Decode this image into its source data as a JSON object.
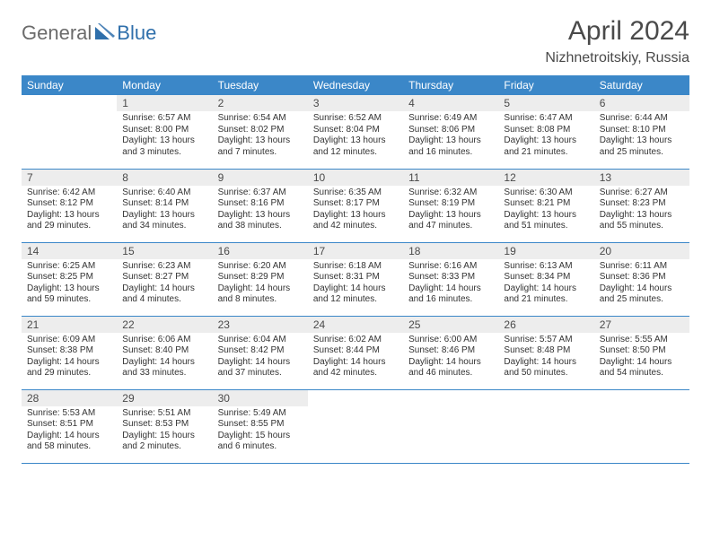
{
  "logo": {
    "general": "General",
    "blue": "Blue"
  },
  "title": "April 2024",
  "location": "Nizhnetroitskiy, Russia",
  "colors": {
    "header_bg": "#3b87c8",
    "header_text": "#ffffff",
    "daynum_bg": "#ededed",
    "border": "#3b87c8",
    "logo_gray": "#6b6b6b",
    "logo_blue": "#2f6fab"
  },
  "weekdays": [
    "Sunday",
    "Monday",
    "Tuesday",
    "Wednesday",
    "Thursday",
    "Friday",
    "Saturday"
  ],
  "weeks": [
    [
      {
        "n": "",
        "lines": []
      },
      {
        "n": "1",
        "lines": [
          "Sunrise: 6:57 AM",
          "Sunset: 8:00 PM",
          "Daylight: 13 hours and 3 minutes."
        ]
      },
      {
        "n": "2",
        "lines": [
          "Sunrise: 6:54 AM",
          "Sunset: 8:02 PM",
          "Daylight: 13 hours and 7 minutes."
        ]
      },
      {
        "n": "3",
        "lines": [
          "Sunrise: 6:52 AM",
          "Sunset: 8:04 PM",
          "Daylight: 13 hours and 12 minutes."
        ]
      },
      {
        "n": "4",
        "lines": [
          "Sunrise: 6:49 AM",
          "Sunset: 8:06 PM",
          "Daylight: 13 hours and 16 minutes."
        ]
      },
      {
        "n": "5",
        "lines": [
          "Sunrise: 6:47 AM",
          "Sunset: 8:08 PM",
          "Daylight: 13 hours and 21 minutes."
        ]
      },
      {
        "n": "6",
        "lines": [
          "Sunrise: 6:44 AM",
          "Sunset: 8:10 PM",
          "Daylight: 13 hours and 25 minutes."
        ]
      }
    ],
    [
      {
        "n": "7",
        "lines": [
          "Sunrise: 6:42 AM",
          "Sunset: 8:12 PM",
          "Daylight: 13 hours and 29 minutes."
        ]
      },
      {
        "n": "8",
        "lines": [
          "Sunrise: 6:40 AM",
          "Sunset: 8:14 PM",
          "Daylight: 13 hours and 34 minutes."
        ]
      },
      {
        "n": "9",
        "lines": [
          "Sunrise: 6:37 AM",
          "Sunset: 8:16 PM",
          "Daylight: 13 hours and 38 minutes."
        ]
      },
      {
        "n": "10",
        "lines": [
          "Sunrise: 6:35 AM",
          "Sunset: 8:17 PM",
          "Daylight: 13 hours and 42 minutes."
        ]
      },
      {
        "n": "11",
        "lines": [
          "Sunrise: 6:32 AM",
          "Sunset: 8:19 PM",
          "Daylight: 13 hours and 47 minutes."
        ]
      },
      {
        "n": "12",
        "lines": [
          "Sunrise: 6:30 AM",
          "Sunset: 8:21 PM",
          "Daylight: 13 hours and 51 minutes."
        ]
      },
      {
        "n": "13",
        "lines": [
          "Sunrise: 6:27 AM",
          "Sunset: 8:23 PM",
          "Daylight: 13 hours and 55 minutes."
        ]
      }
    ],
    [
      {
        "n": "14",
        "lines": [
          "Sunrise: 6:25 AM",
          "Sunset: 8:25 PM",
          "Daylight: 13 hours and 59 minutes."
        ]
      },
      {
        "n": "15",
        "lines": [
          "Sunrise: 6:23 AM",
          "Sunset: 8:27 PM",
          "Daylight: 14 hours and 4 minutes."
        ]
      },
      {
        "n": "16",
        "lines": [
          "Sunrise: 6:20 AM",
          "Sunset: 8:29 PM",
          "Daylight: 14 hours and 8 minutes."
        ]
      },
      {
        "n": "17",
        "lines": [
          "Sunrise: 6:18 AM",
          "Sunset: 8:31 PM",
          "Daylight: 14 hours and 12 minutes."
        ]
      },
      {
        "n": "18",
        "lines": [
          "Sunrise: 6:16 AM",
          "Sunset: 8:33 PM",
          "Daylight: 14 hours and 16 minutes."
        ]
      },
      {
        "n": "19",
        "lines": [
          "Sunrise: 6:13 AM",
          "Sunset: 8:34 PM",
          "Daylight: 14 hours and 21 minutes."
        ]
      },
      {
        "n": "20",
        "lines": [
          "Sunrise: 6:11 AM",
          "Sunset: 8:36 PM",
          "Daylight: 14 hours and 25 minutes."
        ]
      }
    ],
    [
      {
        "n": "21",
        "lines": [
          "Sunrise: 6:09 AM",
          "Sunset: 8:38 PM",
          "Daylight: 14 hours and 29 minutes."
        ]
      },
      {
        "n": "22",
        "lines": [
          "Sunrise: 6:06 AM",
          "Sunset: 8:40 PM",
          "Daylight: 14 hours and 33 minutes."
        ]
      },
      {
        "n": "23",
        "lines": [
          "Sunrise: 6:04 AM",
          "Sunset: 8:42 PM",
          "Daylight: 14 hours and 37 minutes."
        ]
      },
      {
        "n": "24",
        "lines": [
          "Sunrise: 6:02 AM",
          "Sunset: 8:44 PM",
          "Daylight: 14 hours and 42 minutes."
        ]
      },
      {
        "n": "25",
        "lines": [
          "Sunrise: 6:00 AM",
          "Sunset: 8:46 PM",
          "Daylight: 14 hours and 46 minutes."
        ]
      },
      {
        "n": "26",
        "lines": [
          "Sunrise: 5:57 AM",
          "Sunset: 8:48 PM",
          "Daylight: 14 hours and 50 minutes."
        ]
      },
      {
        "n": "27",
        "lines": [
          "Sunrise: 5:55 AM",
          "Sunset: 8:50 PM",
          "Daylight: 14 hours and 54 minutes."
        ]
      }
    ],
    [
      {
        "n": "28",
        "lines": [
          "Sunrise: 5:53 AM",
          "Sunset: 8:51 PM",
          "Daylight: 14 hours and 58 minutes."
        ]
      },
      {
        "n": "29",
        "lines": [
          "Sunrise: 5:51 AM",
          "Sunset: 8:53 PM",
          "Daylight: 15 hours and 2 minutes."
        ]
      },
      {
        "n": "30",
        "lines": [
          "Sunrise: 5:49 AM",
          "Sunset: 8:55 PM",
          "Daylight: 15 hours and 6 minutes."
        ]
      },
      {
        "n": "",
        "lines": []
      },
      {
        "n": "",
        "lines": []
      },
      {
        "n": "",
        "lines": []
      },
      {
        "n": "",
        "lines": []
      }
    ]
  ]
}
